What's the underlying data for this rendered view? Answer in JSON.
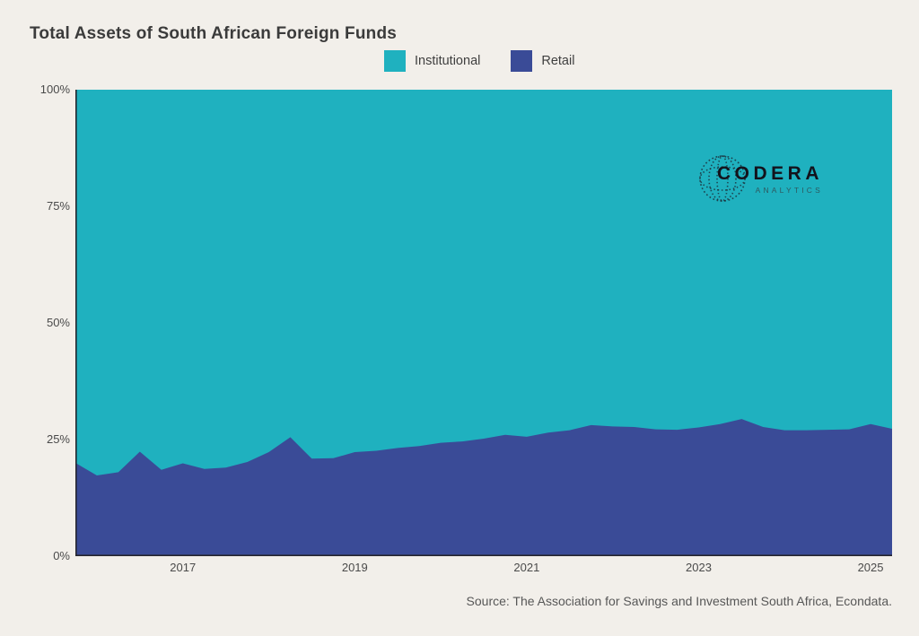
{
  "page": {
    "background": "#f2efea"
  },
  "header": {
    "title": "Total Assets of South African Foreign Funds"
  },
  "legend": {
    "items": [
      {
        "label": "Institutional",
        "color": "#1fb1bf"
      },
      {
        "label": "Retail",
        "color": "#3a4b97"
      }
    ]
  },
  "logo": {
    "wordmark": "CODERA",
    "subtitle": "ANALYTICS"
  },
  "footer": {
    "source": "Source: The Association for Savings and Investment South Africa, Econdata."
  },
  "chart_data": {
    "type": "area",
    "stacked": true,
    "title": "Total Assets of South African Foreign Funds",
    "xlabel": "",
    "ylabel": "",
    "unit": "percent share of total assets",
    "grid": false,
    "legend_position": "top-center",
    "x_range": [
      2015.75,
      2025.25
    ],
    "ylim": [
      0,
      100
    ],
    "x_tick_years": [
      2017,
      2019,
      2021,
      2023,
      2025
    ],
    "x_tick_labels": [
      "2017",
      "2019",
      "2021",
      "2023",
      "2025"
    ],
    "y_tick_values": [
      0,
      25,
      50,
      75,
      100
    ],
    "y_tick_labels": [
      "0%",
      "25%",
      "50%",
      "75%",
      "100%"
    ],
    "categories": [
      "2015 Q3",
      "2015 Q4",
      "2016 Q1",
      "2016 Q2",
      "2016 Q3",
      "2016 Q4",
      "2017 Q1",
      "2017 Q2",
      "2017 Q3",
      "2017 Q4",
      "2018 Q1",
      "2018 Q2",
      "2018 Q3",
      "2018 Q4",
      "2019 Q1",
      "2019 Q2",
      "2019 Q3",
      "2019 Q4",
      "2020 Q1",
      "2020 Q2",
      "2020 Q3",
      "2020 Q4",
      "2021 Q1",
      "2021 Q2",
      "2021 Q3",
      "2021 Q4",
      "2022 Q1",
      "2022 Q2",
      "2022 Q3",
      "2022 Q4",
      "2023 Q1",
      "2023 Q2",
      "2023 Q3",
      "2023 Q4",
      "2024 Q1",
      "2024 Q2",
      "2024 Q3",
      "2024 Q4",
      "2025 Q1"
    ],
    "x": [
      2015.75,
      2016.0,
      2016.25,
      2016.5,
      2016.75,
      2017.0,
      2017.25,
      2017.5,
      2017.75,
      2018.0,
      2018.25,
      2018.5,
      2018.75,
      2019.0,
      2019.25,
      2019.5,
      2019.75,
      2020.0,
      2020.25,
      2020.5,
      2020.75,
      2021.0,
      2021.25,
      2021.5,
      2021.75,
      2022.0,
      2022.25,
      2022.5,
      2022.75,
      2023.0,
      2023.25,
      2023.5,
      2023.75,
      2024.0,
      2024.25,
      2024.5,
      2024.75,
      2025.0,
      2025.25
    ],
    "series": [
      {
        "name": "Institutional",
        "color": "#1fb1bf",
        "values": [
          80.0,
          82.7,
          82.0,
          77.6,
          81.5,
          80.1,
          81.3,
          81.0,
          79.8,
          77.7,
          74.5,
          79.1,
          79.0,
          77.7,
          77.4,
          76.8,
          76.4,
          75.7,
          75.4,
          74.8,
          74.0,
          74.4,
          73.5,
          73.0,
          71.9,
          72.2,
          72.3,
          72.8,
          72.9,
          72.4,
          71.7,
          70.6,
          72.3,
          73.0,
          73.0,
          72.9,
          72.8,
          71.7,
          72.7
        ]
      },
      {
        "name": "Retail",
        "color": "#3a4b97",
        "values": [
          20.0,
          17.3,
          18.0,
          22.4,
          18.5,
          19.9,
          18.7,
          19.0,
          20.2,
          22.3,
          25.5,
          20.9,
          21.0,
          22.3,
          22.6,
          23.2,
          23.6,
          24.3,
          24.6,
          25.2,
          26.0,
          25.6,
          26.5,
          27.0,
          28.1,
          27.8,
          27.7,
          27.2,
          27.1,
          27.6,
          28.3,
          29.4,
          27.7,
          27.0,
          27.0,
          27.1,
          27.2,
          28.3,
          27.3
        ]
      }
    ],
    "axis_line_color": "#26262e"
  }
}
